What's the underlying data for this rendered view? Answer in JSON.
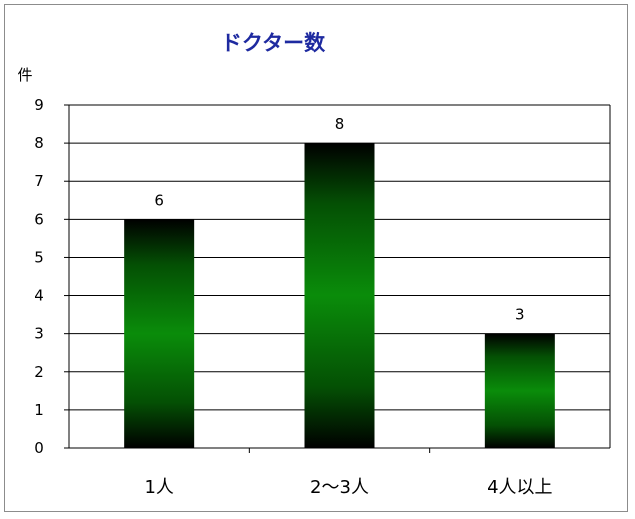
{
  "chart_data": {
    "type": "bar",
    "title": "ドクター数",
    "ylabel": "件",
    "xlabel": "",
    "categories": [
      "1人",
      "2〜3人",
      "4人以上"
    ],
    "values": [
      6,
      8,
      3
    ],
    "ylim": [
      0,
      9
    ],
    "yticks": [
      "0",
      "1",
      "2",
      "3",
      "4",
      "5",
      "6",
      "7",
      "8",
      "9"
    ],
    "data_labels": [
      "6",
      "8",
      "3"
    ],
    "grid": true,
    "legend": "none",
    "colors": {
      "bar_dark": "#001400",
      "bar_light": "#0a8a0a",
      "title": "#1e2aa0",
      "axis": "#000000"
    }
  }
}
